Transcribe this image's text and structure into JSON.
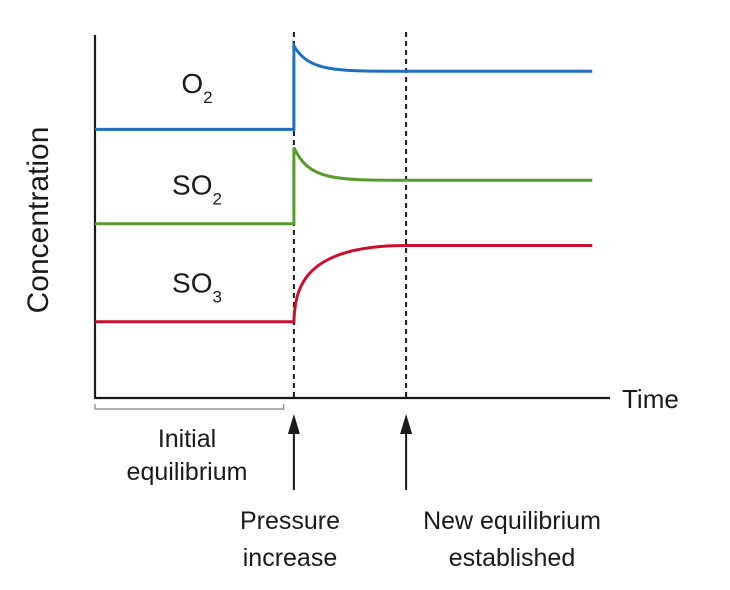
{
  "chart_data": {
    "type": "line",
    "title": "",
    "xlabel": "Time",
    "ylabel": "Concentration",
    "xlim": [
      0,
      100
    ],
    "ylim": [
      0,
      100
    ],
    "grid": false,
    "events": [
      {
        "name": "pressure-increase",
        "x": 39,
        "label_lines": [
          "Pressure",
          "increase"
        ]
      },
      {
        "name": "new-equilibrium",
        "x": 61,
        "label_lines": [
          "New equilibrium",
          "established"
        ]
      }
    ],
    "initial_bracket": {
      "x_start": 0,
      "x_end": 37,
      "label_lines": [
        "Initial",
        "equilibrium"
      ]
    },
    "series": [
      {
        "name": "O2",
        "species": "O",
        "sub": "2",
        "color": "#1f6fc0",
        "initial": 74,
        "peak": 97,
        "final": 90,
        "label_x": 20,
        "label_y": 84
      },
      {
        "name": "SO2",
        "species": "SO",
        "sub": "2",
        "color": "#5a9b2e",
        "initial": 48,
        "peak": 69,
        "final": 60,
        "label_x": 20,
        "label_y": 56
      },
      {
        "name": "SO3",
        "species": "SO",
        "sub": "3",
        "color": "#c8102e",
        "initial": 21,
        "peak": null,
        "final": 42,
        "label_x": 20,
        "label_y": 29
      }
    ]
  }
}
